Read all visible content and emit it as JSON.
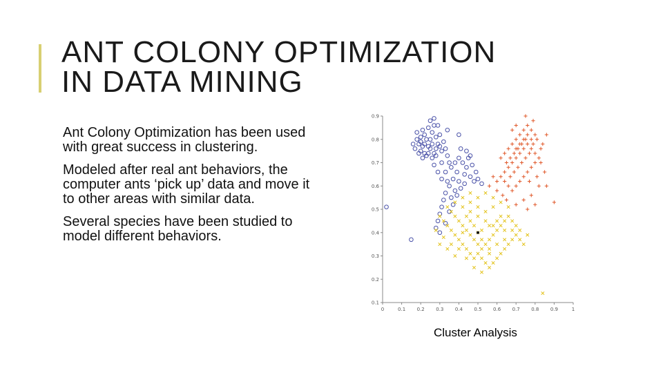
{
  "slide": {
    "title_line1": "ANT COLONY OPTIMIZATION",
    "title_line2": "IN DATA MINING",
    "bullets": [
      "Ant Colony Optimization has been used with great success in clustering.",
      "Modeled after real ant behaviors, the computer ants ‘pick up’ data and move it to other areas with similar data.",
      "Several species have been studied to model different behaviors."
    ],
    "caption": "Cluster Analysis",
    "accent_color": "#d8cf72"
  },
  "chart_data": {
    "type": "scatter",
    "title": "",
    "xlabel": "",
    "ylabel": "",
    "xlim": [
      0,
      1
    ],
    "ylim": [
      0.1,
      0.9
    ],
    "xticks": [
      "0",
      "0.1",
      "0.2",
      "0.3",
      "0.4",
      "0.5",
      "0.6",
      "0.7",
      "0.8",
      "0.9",
      "1"
    ],
    "yticks": [
      "0.1",
      "0.2",
      "0.3",
      "0.4",
      "0.5",
      "0.6",
      "0.7",
      "0.8",
      "0.9"
    ],
    "grid": false,
    "legend": "none",
    "series": [
      {
        "marker": "circle",
        "color": "#4a52a8",
        "points": [
          [
            0.18,
            0.8
          ],
          [
            0.19,
            0.78
          ],
          [
            0.2,
            0.79
          ],
          [
            0.21,
            0.77
          ],
          [
            0.2,
            0.75
          ],
          [
            0.22,
            0.78
          ],
          [
            0.23,
            0.8
          ],
          [
            0.22,
            0.82
          ],
          [
            0.24,
            0.77
          ],
          [
            0.25,
            0.76
          ],
          [
            0.26,
            0.78
          ],
          [
            0.24,
            0.74
          ],
          [
            0.23,
            0.73
          ],
          [
            0.27,
            0.74
          ],
          [
            0.28,
            0.76
          ],
          [
            0.29,
            0.78
          ],
          [
            0.3,
            0.77
          ],
          [
            0.31,
            0.75
          ],
          [
            0.28,
            0.73
          ],
          [
            0.26,
            0.72
          ],
          [
            0.21,
            0.72
          ],
          [
            0.19,
            0.74
          ],
          [
            0.17,
            0.76
          ],
          [
            0.16,
            0.78
          ],
          [
            0.21,
            0.84
          ],
          [
            0.24,
            0.85
          ],
          [
            0.26,
            0.83
          ],
          [
            0.28,
            0.81
          ],
          [
            0.3,
            0.82
          ],
          [
            0.27,
            0.86
          ],
          [
            0.32,
            0.79
          ],
          [
            0.33,
            0.76
          ],
          [
            0.34,
            0.73
          ],
          [
            0.35,
            0.7
          ],
          [
            0.36,
            0.68
          ],
          [
            0.38,
            0.7
          ],
          [
            0.4,
            0.72
          ],
          [
            0.42,
            0.7
          ],
          [
            0.44,
            0.68
          ],
          [
            0.43,
            0.65
          ],
          [
            0.46,
            0.64
          ],
          [
            0.48,
            0.62
          ],
          [
            0.5,
            0.63
          ],
          [
            0.52,
            0.61
          ],
          [
            0.49,
            0.66
          ],
          [
            0.47,
            0.69
          ],
          [
            0.45,
            0.72
          ],
          [
            0.41,
            0.76
          ],
          [
            0.39,
            0.66
          ],
          [
            0.37,
            0.63
          ],
          [
            0.35,
            0.6
          ],
          [
            0.33,
            0.57
          ],
          [
            0.32,
            0.54
          ],
          [
            0.31,
            0.51
          ],
          [
            0.3,
            0.48
          ],
          [
            0.29,
            0.45
          ],
          [
            0.28,
            0.42
          ],
          [
            0.3,
            0.4
          ],
          [
            0.33,
            0.44
          ],
          [
            0.35,
            0.49
          ],
          [
            0.37,
            0.52
          ],
          [
            0.39,
            0.56
          ],
          [
            0.41,
            0.59
          ],
          [
            0.43,
            0.61
          ],
          [
            0.31,
            0.63
          ],
          [
            0.29,
            0.66
          ],
          [
            0.27,
            0.69
          ],
          [
            0.34,
            0.84
          ],
          [
            0.29,
            0.86
          ],
          [
            0.22,
            0.74
          ],
          [
            0.25,
            0.8
          ],
          [
            0.2,
            0.81
          ],
          [
            0.18,
            0.83
          ],
          [
            0.33,
            0.66
          ],
          [
            0.36,
            0.55
          ],
          [
            0.4,
            0.62
          ],
          [
            0.02,
            0.51
          ],
          [
            0.15,
            0.37
          ],
          [
            0.25,
            0.88
          ],
          [
            0.27,
            0.89
          ],
          [
            0.4,
            0.82
          ],
          [
            0.44,
            0.75
          ],
          [
            0.46,
            0.73
          ],
          [
            0.31,
            0.7
          ],
          [
            0.34,
            0.62
          ],
          [
            0.38,
            0.58
          ]
        ]
      },
      {
        "marker": "plus",
        "color": "#e0582a",
        "points": [
          [
            0.62,
            0.72
          ],
          [
            0.64,
            0.74
          ],
          [
            0.66,
            0.76
          ],
          [
            0.68,
            0.78
          ],
          [
            0.7,
            0.8
          ],
          [
            0.72,
            0.82
          ],
          [
            0.74,
            0.84
          ],
          [
            0.76,
            0.86
          ],
          [
            0.78,
            0.84
          ],
          [
            0.8,
            0.82
          ],
          [
            0.78,
            0.8
          ],
          [
            0.76,
            0.78
          ],
          [
            0.74,
            0.76
          ],
          [
            0.72,
            0.74
          ],
          [
            0.7,
            0.72
          ],
          [
            0.68,
            0.7
          ],
          [
            0.66,
            0.68
          ],
          [
            0.64,
            0.66
          ],
          [
            0.62,
            0.64
          ],
          [
            0.6,
            0.62
          ],
          [
            0.7,
            0.76
          ],
          [
            0.72,
            0.78
          ],
          [
            0.74,
            0.8
          ],
          [
            0.76,
            0.82
          ],
          [
            0.78,
            0.76
          ],
          [
            0.8,
            0.74
          ],
          [
            0.82,
            0.72
          ],
          [
            0.8,
            0.7
          ],
          [
            0.78,
            0.68
          ],
          [
            0.76,
            0.66
          ],
          [
            0.74,
            0.64
          ],
          [
            0.72,
            0.62
          ],
          [
            0.7,
            0.6
          ],
          [
            0.68,
            0.58
          ],
          [
            0.66,
            0.6
          ],
          [
            0.64,
            0.62
          ],
          [
            0.75,
            0.72
          ],
          [
            0.77,
            0.74
          ],
          [
            0.79,
            0.78
          ],
          [
            0.81,
            0.8
          ],
          [
            0.73,
            0.7
          ],
          [
            0.71,
            0.68
          ],
          [
            0.69,
            0.66
          ],
          [
            0.67,
            0.64
          ],
          [
            0.65,
            0.7
          ],
          [
            0.67,
            0.72
          ],
          [
            0.69,
            0.74
          ],
          [
            0.71,
            0.76
          ],
          [
            0.73,
            0.78
          ],
          [
            0.75,
            0.8
          ],
          [
            0.84,
            0.78
          ],
          [
            0.86,
            0.82
          ],
          [
            0.83,
            0.7
          ],
          [
            0.85,
            0.66
          ],
          [
            0.82,
            0.6
          ],
          [
            0.78,
            0.56
          ],
          [
            0.74,
            0.54
          ],
          [
            0.7,
            0.52
          ],
          [
            0.76,
            0.5
          ],
          [
            0.8,
            0.52
          ],
          [
            0.86,
            0.6
          ],
          [
            0.9,
            0.53
          ],
          [
            0.75,
            0.9
          ],
          [
            0.79,
            0.88
          ],
          [
            0.58,
            0.64
          ],
          [
            0.56,
            0.6
          ],
          [
            0.6,
            0.58
          ],
          [
            0.63,
            0.56
          ],
          [
            0.65,
            0.54
          ],
          [
            0.77,
            0.62
          ],
          [
            0.83,
            0.76
          ],
          [
            0.81,
            0.64
          ],
          [
            0.68,
            0.84
          ],
          [
            0.7,
            0.86
          ]
        ]
      },
      {
        "marker": "cross",
        "color": "#e2c012",
        "points": [
          [
            0.3,
            0.47
          ],
          [
            0.32,
            0.45
          ],
          [
            0.34,
            0.43
          ],
          [
            0.36,
            0.41
          ],
          [
            0.38,
            0.39
          ],
          [
            0.4,
            0.37
          ],
          [
            0.42,
            0.35
          ],
          [
            0.44,
            0.33
          ],
          [
            0.46,
            0.31
          ],
          [
            0.48,
            0.29
          ],
          [
            0.5,
            0.31
          ],
          [
            0.52,
            0.33
          ],
          [
            0.54,
            0.35
          ],
          [
            0.56,
            0.37
          ],
          [
            0.58,
            0.39
          ],
          [
            0.6,
            0.41
          ],
          [
            0.62,
            0.43
          ],
          [
            0.64,
            0.45
          ],
          [
            0.66,
            0.47
          ],
          [
            0.68,
            0.45
          ],
          [
            0.7,
            0.43
          ],
          [
            0.72,
            0.41
          ],
          [
            0.7,
            0.39
          ],
          [
            0.68,
            0.37
          ],
          [
            0.66,
            0.35
          ],
          [
            0.64,
            0.33
          ],
          [
            0.62,
            0.31
          ],
          [
            0.6,
            0.29
          ],
          [
            0.58,
            0.27
          ],
          [
            0.56,
            0.25
          ],
          [
            0.54,
            0.27
          ],
          [
            0.52,
            0.29
          ],
          [
            0.5,
            0.35
          ],
          [
            0.48,
            0.37
          ],
          [
            0.46,
            0.39
          ],
          [
            0.44,
            0.41
          ],
          [
            0.42,
            0.43
          ],
          [
            0.4,
            0.45
          ],
          [
            0.38,
            0.47
          ],
          [
            0.36,
            0.49
          ],
          [
            0.34,
            0.51
          ],
          [
            0.38,
            0.53
          ],
          [
            0.42,
            0.51
          ],
          [
            0.46,
            0.49
          ],
          [
            0.5,
            0.47
          ],
          [
            0.54,
            0.45
          ],
          [
            0.58,
            0.43
          ],
          [
            0.62,
            0.47
          ],
          [
            0.66,
            0.51
          ],
          [
            0.62,
            0.53
          ],
          [
            0.58,
            0.51
          ],
          [
            0.54,
            0.49
          ],
          [
            0.5,
            0.51
          ],
          [
            0.46,
            0.53
          ],
          [
            0.42,
            0.55
          ],
          [
            0.46,
            0.57
          ],
          [
            0.5,
            0.55
          ],
          [
            0.54,
            0.57
          ],
          [
            0.58,
            0.55
          ],
          [
            0.44,
            0.47
          ],
          [
            0.48,
            0.43
          ],
          [
            0.52,
            0.41
          ],
          [
            0.56,
            0.43
          ],
          [
            0.6,
            0.45
          ],
          [
            0.64,
            0.41
          ],
          [
            0.68,
            0.41
          ],
          [
            0.72,
            0.37
          ],
          [
            0.74,
            0.35
          ],
          [
            0.76,
            0.39
          ],
          [
            0.32,
            0.38
          ],
          [
            0.36,
            0.35
          ],
          [
            0.4,
            0.33
          ],
          [
            0.44,
            0.29
          ],
          [
            0.48,
            0.25
          ],
          [
            0.52,
            0.23
          ],
          [
            0.56,
            0.31
          ],
          [
            0.6,
            0.35
          ],
          [
            0.64,
            0.37
          ],
          [
            0.38,
            0.3
          ],
          [
            0.34,
            0.33
          ],
          [
            0.3,
            0.35
          ],
          [
            0.28,
            0.41
          ],
          [
            0.52,
            0.37
          ],
          [
            0.56,
            0.33
          ],
          [
            0.5,
            0.4
          ],
          [
            0.46,
            0.45
          ],
          [
            0.42,
            0.4
          ],
          [
            0.84,
            0.14
          ]
        ]
      },
      {
        "marker": "dot",
        "color": "#111111",
        "points": [
          [
            0.5,
            0.4
          ]
        ]
      }
    ]
  }
}
